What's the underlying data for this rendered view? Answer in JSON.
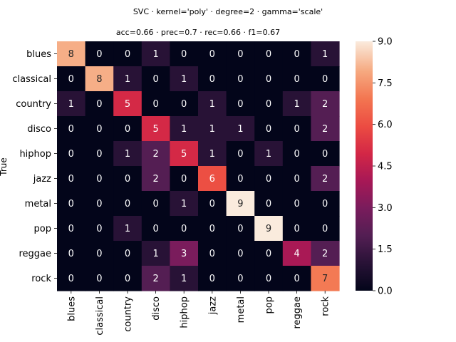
{
  "chart_data": {
    "type": "heatmap",
    "suptitle": "SVC · kernel='poly' · degree=2 · gamma='scale'",
    "title": "acc=0.66 · prec=0.7 · rec=0.66 · f1=0.67",
    "ylabel": "True",
    "xlabel": "",
    "x_categories": [
      "blues",
      "classical",
      "country",
      "disco",
      "hiphop",
      "jazz",
      "metal",
      "pop",
      "reggae",
      "rock"
    ],
    "y_categories": [
      "blues",
      "classical",
      "country",
      "disco",
      "hiphop",
      "jazz",
      "metal",
      "pop",
      "reggae",
      "rock"
    ],
    "values": [
      [
        8,
        0,
        0,
        1,
        0,
        0,
        0,
        0,
        0,
        1
      ],
      [
        0,
        8,
        1,
        0,
        1,
        0,
        0,
        0,
        0,
        0
      ],
      [
        1,
        0,
        5,
        0,
        0,
        1,
        0,
        0,
        1,
        2
      ],
      [
        0,
        0,
        0,
        5,
        1,
        1,
        1,
        0,
        0,
        2
      ],
      [
        0,
        0,
        1,
        2,
        5,
        1,
        0,
        1,
        0,
        0
      ],
      [
        0,
        0,
        0,
        2,
        0,
        6,
        0,
        0,
        0,
        2
      ],
      [
        0,
        0,
        0,
        0,
        1,
        0,
        9,
        0,
        0,
        0
      ],
      [
        0,
        0,
        1,
        0,
        0,
        0,
        0,
        9,
        0,
        0
      ],
      [
        0,
        0,
        0,
        1,
        3,
        0,
        0,
        0,
        4,
        2
      ],
      [
        0,
        0,
        0,
        2,
        1,
        0,
        0,
        0,
        0,
        7
      ]
    ],
    "colorbar": {
      "range": [
        0,
        9
      ],
      "ticks": [
        "0.0",
        "1.5",
        "3.0",
        "4.5",
        "6.0",
        "7.5",
        "9.0"
      ],
      "colormap": "rocket"
    },
    "grid": false
  }
}
